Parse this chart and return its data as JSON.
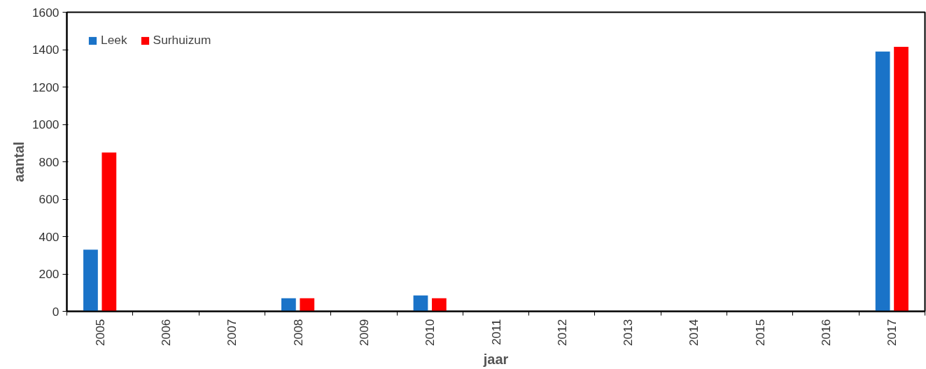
{
  "chart_data": {
    "type": "bar",
    "xlabel": "jaar",
    "ylabel": "aantal",
    "categories": [
      "2005",
      "2006",
      "2007",
      "2008",
      "2009",
      "2010",
      "2011",
      "2012",
      "2013",
      "2014",
      "2015",
      "2016",
      "2017"
    ],
    "series": [
      {
        "name": "Leek",
        "color": "#1a73c8",
        "values": [
          330,
          null,
          null,
          70,
          null,
          85,
          null,
          null,
          null,
          null,
          null,
          null,
          1390
        ]
      },
      {
        "name": "Surhuizum",
        "color": "#ff0000",
        "values": [
          850,
          null,
          null,
          70,
          null,
          70,
          null,
          null,
          null,
          null,
          null,
          null,
          1415
        ]
      }
    ],
    "ylim": [
      0,
      1600
    ],
    "yticks": [
      0,
      200,
      400,
      600,
      800,
      1000,
      1200,
      1400,
      1600
    ],
    "grid": false,
    "legend": "top left"
  }
}
